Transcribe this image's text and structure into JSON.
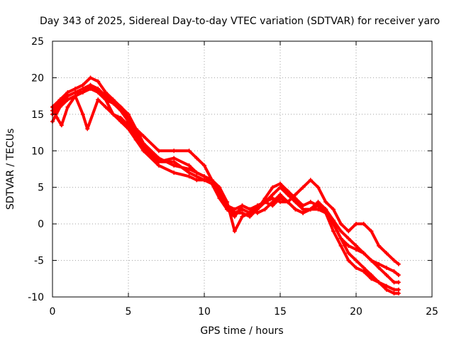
{
  "chart_data": {
    "type": "scatter",
    "title": "Day 343 of 2025, Sidereal Day-to-day VTEC variation (SDTVAR) for receiver yaro",
    "xlabel": "GPS time / hours",
    "ylabel": "SDTVAR / TECUs",
    "xlim": [
      0,
      25
    ],
    "ylim": [
      -10,
      25
    ],
    "xticks": [
      0,
      5,
      10,
      15,
      20,
      25
    ],
    "yticks": [
      -10,
      -5,
      0,
      5,
      10,
      15,
      20,
      25
    ],
    "grid": true,
    "marker": "+",
    "color": "#ff0000",
    "series": [
      {
        "name": "trace-1",
        "x": [
          0,
          0.5,
          1.0,
          1.5,
          2.0,
          2.5,
          3.0,
          3.5,
          4.0,
          4.5,
          5.0,
          5.5,
          6.0,
          7.0,
          8.0,
          9.0,
          9.5,
          10.0,
          10.5,
          11.0,
          11.5,
          12.0,
          12.5,
          13.0,
          13.5,
          14.0,
          14.5,
          15.0,
          15.5,
          16.0,
          16.5,
          17.0,
          17.5,
          18.0,
          18.5,
          19.0,
          19.5,
          20.0,
          20.5,
          21.0,
          21.5,
          22.0,
          22.5,
          22.8
        ],
        "y": [
          16,
          17,
          18,
          18.5,
          19,
          20,
          19.5,
          18,
          17,
          16,
          15,
          13,
          11,
          9,
          8,
          7.5,
          7,
          6.5,
          6,
          4,
          2.5,
          1.5,
          2,
          1.5,
          2,
          3,
          4,
          5,
          4,
          3,
          2,
          2,
          3,
          2,
          0,
          -2,
          -4,
          -5,
          -6,
          -7,
          -8,
          -9,
          -9.5,
          -9.5
        ]
      },
      {
        "name": "trace-2",
        "x": [
          0,
          0.5,
          1.0,
          1.5,
          2.0,
          2.5,
          3.0,
          3.5,
          4.0,
          4.5,
          5.0,
          5.5,
          6.0,
          7.0,
          8.0,
          9.0,
          9.5,
          10.0,
          10.5,
          11.0,
          11.5,
          12.0,
          12.5,
          13.0,
          13.5,
          14.0,
          14.5,
          15.0,
          15.5,
          16.0,
          16.5,
          17.0,
          17.5,
          18.0,
          18.5,
          19.0,
          19.5,
          20.0,
          20.5,
          21.0,
          21.5,
          22.0,
          22.5,
          22.8
        ],
        "y": [
          15,
          16.5,
          17.5,
          18,
          18.5,
          19,
          18.5,
          17.5,
          16.5,
          15.5,
          14,
          12.5,
          10.5,
          8.5,
          8.5,
          7,
          6.5,
          6,
          5.5,
          3.5,
          2,
          1.5,
          1.5,
          1,
          2,
          3.5,
          5,
          5.5,
          4.5,
          3.5,
          2.5,
          3,
          2.5,
          1.5,
          -1,
          -3,
          -5,
          -6,
          -6.5,
          -7.5,
          -8,
          -8.5,
          -9,
          -9
        ]
      },
      {
        "name": "trace-3",
        "x": [
          0,
          0.5,
          1.0,
          1.5,
          2.0,
          2.5,
          3.0,
          3.5,
          4.0,
          4.5,
          5.0,
          5.5,
          6.0,
          7.0,
          8.0,
          9.0,
          9.5,
          10.0,
          10.5,
          11.0,
          11.5,
          12.0,
          12.5,
          13.0,
          13.5,
          14.0,
          14.5,
          15.0,
          15.5,
          16.0,
          16.5,
          17.0,
          17.5,
          18.0,
          18.5,
          19.0,
          19.5,
          20.0,
          20.5,
          21.0,
          21.5,
          22.0,
          22.5,
          22.8
        ],
        "y": [
          14,
          16,
          17,
          17.5,
          18,
          18.5,
          18,
          17,
          16.5,
          16,
          14.5,
          13,
          12,
          10,
          10,
          10,
          9,
          8,
          6,
          4,
          2.5,
          2,
          2.5,
          2,
          2.5,
          3,
          3.5,
          3,
          3,
          4,
          5,
          6,
          5,
          3,
          2,
          0,
          -1,
          0,
          0,
          -1,
          -3,
          -4,
          -5,
          -5.5
        ]
      },
      {
        "name": "trace-4",
        "x": [
          0,
          0.3,
          0.6,
          1.0,
          1.5,
          2.0,
          2.3,
          3.0,
          3.5,
          4.0,
          4.5,
          5.0,
          5.5,
          6.0,
          7.0,
          8.0,
          9.0,
          9.5,
          10.0,
          10.5,
          11.0,
          11.5,
          12.0,
          12.5,
          13.0,
          13.5,
          14.0,
          14.5,
          15.0,
          15.5,
          16.0,
          16.5,
          17.0,
          17.5,
          18.0,
          18.5,
          19.0,
          19.5,
          20.0,
          20.5,
          21.0,
          21.5,
          22.0,
          22.5,
          22.8
        ],
        "y": [
          16,
          14.5,
          13.5,
          16,
          17.5,
          15,
          13,
          17,
          16,
          15,
          14.5,
          13.5,
          12,
          10,
          8.5,
          9,
          8,
          7,
          6.5,
          6,
          5,
          3,
          -1,
          1,
          1.5,
          2.5,
          3,
          2.5,
          3.5,
          3,
          2,
          1.5,
          2,
          2.5,
          2,
          0.5,
          -1,
          -2,
          -3,
          -4,
          -5,
          -5.5,
          -6,
          -6.5,
          -7
        ]
      },
      {
        "name": "trace-5",
        "x": [
          0,
          0.5,
          1.0,
          1.5,
          2.0,
          2.5,
          3.0,
          3.5,
          4.0,
          4.5,
          5.0,
          5.5,
          6.0,
          7.0,
          8.0,
          9.0,
          9.5,
          10.0,
          10.5,
          11.0,
          11.5,
          12.0,
          12.5,
          13.0,
          13.5,
          14.0,
          14.5,
          15.0,
          15.5,
          16.0,
          16.5,
          17.0,
          17.5,
          18.0,
          18.5,
          19.0,
          19.5,
          20.0,
          20.5,
          21.0,
          21.5,
          22.0,
          22.5,
          22.8
        ],
        "y": [
          15.5,
          17,
          17.5,
          18,
          18,
          19,
          18,
          17,
          15,
          14,
          13,
          11.5,
          10,
          8,
          7,
          6.5,
          6,
          6,
          6,
          4.5,
          2,
          1,
          2.5,
          2,
          1.5,
          2,
          3,
          4,
          3,
          2,
          1.5,
          2,
          2,
          1.5,
          0,
          -2,
          -3,
          -3.5,
          -4,
          -5,
          -6,
          -7,
          -8,
          -8
        ]
      }
    ]
  }
}
